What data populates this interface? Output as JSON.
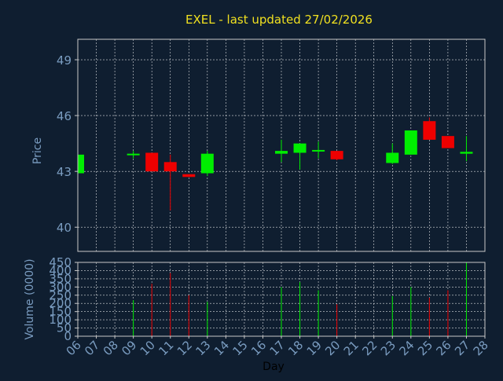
{
  "colors": {
    "background": "#0f1e30",
    "title": "#f0e020",
    "axis_text": "#7a9cc0",
    "grid": "#ffffff",
    "frame": "#c8c8c8",
    "up": "#00ee00",
    "down": "#ee0000",
    "x_label": "#000000"
  },
  "chart_data": [
    {
      "type": "candlestick",
      "title": "EXEL - last updated 27/02/2026",
      "ylabel": "Price",
      "ylim": [
        38.7,
        50.1
      ],
      "yticks": [
        40,
        43,
        46,
        49
      ],
      "grid": true,
      "candles": [
        {
          "day": "06",
          "open": 42.9,
          "close": 43.9,
          "high": 43.9,
          "low": 42.9
        },
        {
          "day": "09",
          "open": 43.9,
          "close": 43.95,
          "high": 44.1,
          "low": 43.7
        },
        {
          "day": "10",
          "open": 44.0,
          "close": 43.0,
          "high": 44.0,
          "low": 43.0
        },
        {
          "day": "11",
          "open": 43.5,
          "close": 43.0,
          "high": 43.9,
          "low": 40.9
        },
        {
          "day": "12",
          "open": 42.85,
          "close": 42.7,
          "high": 42.85,
          "low": 42.7
        },
        {
          "day": "13",
          "open": 42.9,
          "close": 43.95,
          "high": 44.1,
          "low": 42.75
        },
        {
          "day": "17",
          "open": 43.95,
          "close": 44.1,
          "high": 44.7,
          "low": 43.5
        },
        {
          "day": "18",
          "open": 44.0,
          "close": 44.5,
          "high": 44.5,
          "low": 43.1
        },
        {
          "day": "19",
          "open": 44.1,
          "close": 44.15,
          "high": 44.6,
          "low": 43.7
        },
        {
          "day": "20",
          "open": 44.1,
          "close": 43.65,
          "high": 44.1,
          "low": 43.6
        },
        {
          "day": "23",
          "open": 43.45,
          "close": 44.0,
          "high": 44.5,
          "low": 43.4
        },
        {
          "day": "24",
          "open": 43.9,
          "close": 45.2,
          "high": 45.2,
          "low": 43.9
        },
        {
          "day": "25",
          "open": 45.7,
          "close": 44.7,
          "high": 45.9,
          "low": 44.7
        },
        {
          "day": "26",
          "open": 44.9,
          "close": 44.25,
          "high": 44.9,
          "low": 44.25
        },
        {
          "day": "27",
          "open": 43.95,
          "close": 44.05,
          "high": 44.9,
          "low": 43.55
        }
      ]
    },
    {
      "type": "bar",
      "ylabel": "Volume (0000)",
      "xlabel": "Day",
      "ylim": [
        0,
        450
      ],
      "yticks": [
        0,
        50,
        100,
        150,
        200,
        250,
        300,
        350,
        400,
        450
      ],
      "grid": true,
      "categories": [
        "06",
        "07",
        "08",
        "09",
        "10",
        "11",
        "12",
        "13",
        "14",
        "15",
        "16",
        "17",
        "18",
        "19",
        "20",
        "21",
        "22",
        "23",
        "24",
        "25",
        "26",
        "27",
        "28"
      ],
      "volumes": [
        {
          "day": "09",
          "value": 220,
          "direction": "up"
        },
        {
          "day": "10",
          "value": 320,
          "direction": "down"
        },
        {
          "day": "11",
          "value": 385,
          "direction": "down"
        },
        {
          "day": "12",
          "value": 250,
          "direction": "down"
        },
        {
          "day": "13",
          "value": 210,
          "direction": "up"
        },
        {
          "day": "17",
          "value": 300,
          "direction": "up"
        },
        {
          "day": "18",
          "value": 330,
          "direction": "up"
        },
        {
          "day": "19",
          "value": 280,
          "direction": "up"
        },
        {
          "day": "20",
          "value": 195,
          "direction": "down"
        },
        {
          "day": "23",
          "value": 245,
          "direction": "up"
        },
        {
          "day": "24",
          "value": 300,
          "direction": "up"
        },
        {
          "day": "25",
          "value": 235,
          "direction": "down"
        },
        {
          "day": "26",
          "value": 280,
          "direction": "down"
        },
        {
          "day": "27",
          "value": 450,
          "direction": "up"
        }
      ]
    }
  ]
}
